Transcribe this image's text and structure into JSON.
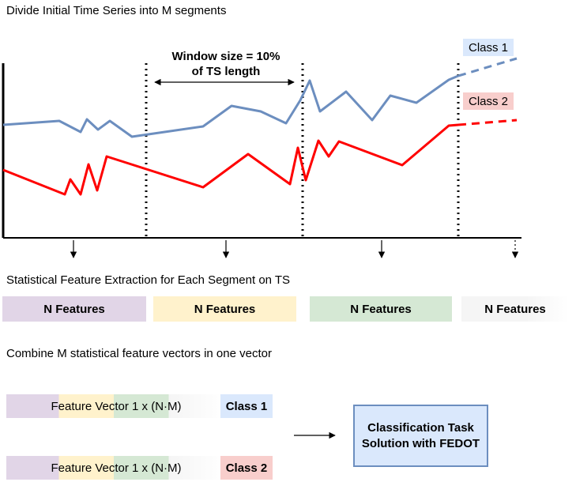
{
  "headings": {
    "divide": "Divide Initial Time Series into M segments",
    "extraction": "Statistical Feature Extraction for Each Segment on TS",
    "combine": "Combine M statistical feature vectors in one vector"
  },
  "window_label": {
    "line1": "Window size = 10%",
    "line2": "of TS length"
  },
  "series": [
    {
      "label": "Class 1",
      "color": "#6c8ebf",
      "fill": "#dae8fc"
    },
    {
      "label": "Class 2",
      "color": "#ff0000",
      "fill": "#f8cecc"
    }
  ],
  "segments": [
    {
      "label": "N Features",
      "fill": "#e1d5e7"
    },
    {
      "label": "N Features",
      "fill": "#fff2cc"
    },
    {
      "label": "N Features",
      "fill": "#d5e8d4"
    },
    {
      "label": "N Features",
      "fill": "#f5f5f5"
    }
  ],
  "vectors": [
    {
      "label": "Feature Vector 1 x (N·M)",
      "class_label": "Class 1",
      "class_fill": "#dae8fc"
    },
    {
      "label": "Feature Vector 1 x (N·M)",
      "class_label": "Class 2",
      "class_fill": "#f8cecc"
    }
  ],
  "task": {
    "line1": "Classification Task",
    "line2": "Solution with FEDOT"
  }
}
